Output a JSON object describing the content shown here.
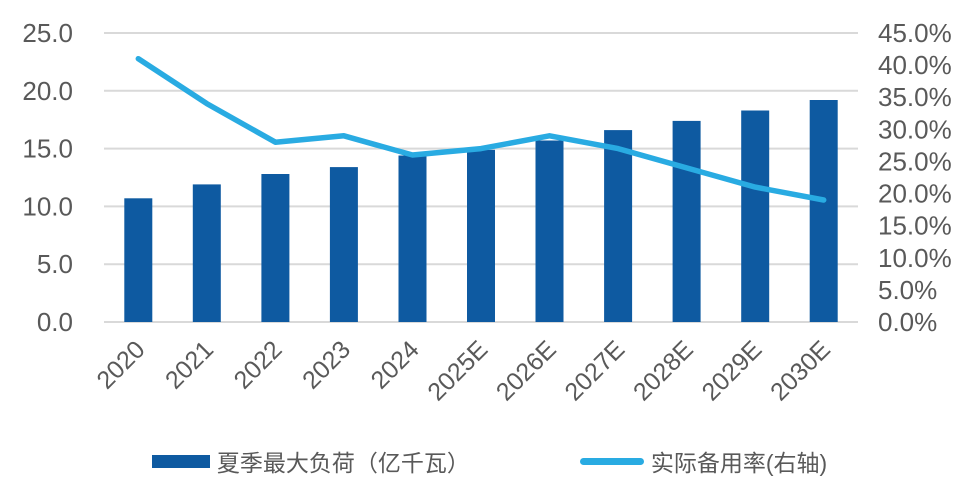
{
  "chart_data": {
    "type": "bar",
    "title": "",
    "categories": [
      "2020",
      "2021",
      "2022",
      "2023",
      "2024",
      "2025E",
      "2026E",
      "2027E",
      "2028E",
      "2029E",
      "2030E"
    ],
    "series": [
      {
        "name": "夏季最大负荷（亿千瓦）",
        "kind": "bar",
        "axis": "left",
        "color": "#0E5AA1",
        "values": [
          10.7,
          11.9,
          12.8,
          13.4,
          14.4,
          14.9,
          15.7,
          16.6,
          17.4,
          18.3,
          19.2
        ]
      },
      {
        "name": "实际备用率(右轴)",
        "kind": "line",
        "axis": "right",
        "color": "#29ABE2",
        "values": [
          41.0,
          34.0,
          28.0,
          29.0,
          26.0,
          27.0,
          29.0,
          27.0,
          24.0,
          21.0,
          19.0
        ]
      }
    ],
    "left_axis": {
      "min": 0,
      "max": 25,
      "step": 5,
      "ticks": [
        "0.0",
        "5.0",
        "10.0",
        "15.0",
        "20.0",
        "25.0"
      ]
    },
    "right_axis": {
      "min": 0,
      "max": 45,
      "step": 5,
      "ticks": [
        "0.0%",
        "5.0%",
        "10.0%",
        "15.0%",
        "20.0%",
        "25.0%",
        "30.0%",
        "35.0%",
        "40.0%",
        "45.0%"
      ]
    },
    "grid": true,
    "grid_color": "#D9D9D9",
    "tick_color": "#595959",
    "legend_position": "bottom"
  }
}
